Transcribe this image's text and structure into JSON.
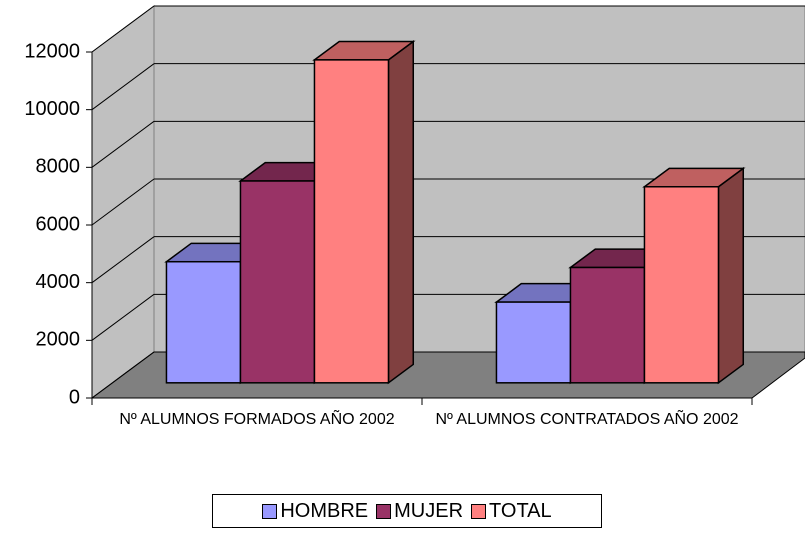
{
  "chart_data": {
    "type": "bar3d",
    "categories": [
      "Nº ALUMNOS FORMADOS AÑO 2002",
      "Nº ALUMNOS CONTRATADOS AÑO 2002"
    ],
    "series": [
      {
        "name": "HOMBRE",
        "color": "#9999ff",
        "values": [
          4200,
          2800
        ]
      },
      {
        "name": "MUJER",
        "color": "#993366",
        "values": [
          7000,
          4000
        ]
      },
      {
        "name": "TOTAL",
        "color": "#ff8080",
        "values": [
          11200,
          6800
        ]
      }
    ],
    "ylim": [
      0,
      12000
    ],
    "yticks": [
      0,
      2000,
      4000,
      6000,
      8000,
      10000,
      12000
    ],
    "grid": true,
    "legend": "bottom"
  }
}
